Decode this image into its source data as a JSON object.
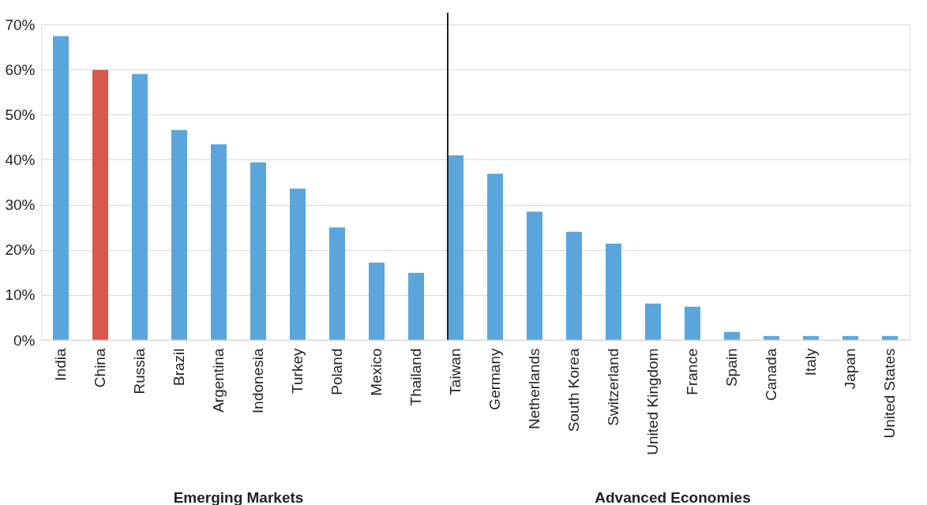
{
  "chart_data": {
    "type": "bar",
    "categories": [
      "India",
      "China",
      "Russia",
      "Brazil",
      "Argentina",
      "Indonesia",
      "Turkey",
      "Poland",
      "Mexico",
      "Thailand",
      "Taiwan",
      "Germany",
      "Netherlands",
      "South Korea",
      "Switzerland",
      "United Kingdom",
      "France",
      "Spain",
      "Canada",
      "Italy",
      "Japan",
      "United States"
    ],
    "values": [
      67.4,
      59.9,
      59.0,
      46.6,
      43.4,
      39.4,
      33.6,
      25.0,
      17.2,
      14.9,
      41.0,
      36.9,
      28.5,
      24.0,
      21.4,
      8.1,
      7.4,
      1.8,
      0.9,
      0.9,
      0.9,
      0.9
    ],
    "colors": [
      "#5ba5dd",
      "#d9574b",
      "#5ba5dd",
      "#5ba5dd",
      "#5ba5dd",
      "#5ba5dd",
      "#5ba5dd",
      "#5ba5dd",
      "#5ba5dd",
      "#5ba5dd",
      "#5ba5dd",
      "#5ba5dd",
      "#5ba5dd",
      "#5ba5dd",
      "#5ba5dd",
      "#5ba5dd",
      "#5ba5dd",
      "#5ba5dd",
      "#5ba5dd",
      "#5ba5dd",
      "#5ba5dd",
      "#5ba5dd"
    ],
    "ylim": [
      0,
      70
    ],
    "yticks": [
      {
        "value": 0,
        "label": "0%"
      },
      {
        "value": 10,
        "label": "10%"
      },
      {
        "value": 20,
        "label": "20%"
      },
      {
        "value": 30,
        "label": "30%"
      },
      {
        "value": 40,
        "label": "40%"
      },
      {
        "value": 50,
        "label": "50%"
      },
      {
        "value": 60,
        "label": "60%"
      },
      {
        "value": 70,
        "label": "70%"
      }
    ],
    "grid": "y",
    "ref_lines": [
      {
        "axis": "x",
        "value": "Taiwan",
        "color": "#222222"
      }
    ],
    "annotations": [
      "Emerging Markets",
      "Advanced Economies"
    ]
  }
}
